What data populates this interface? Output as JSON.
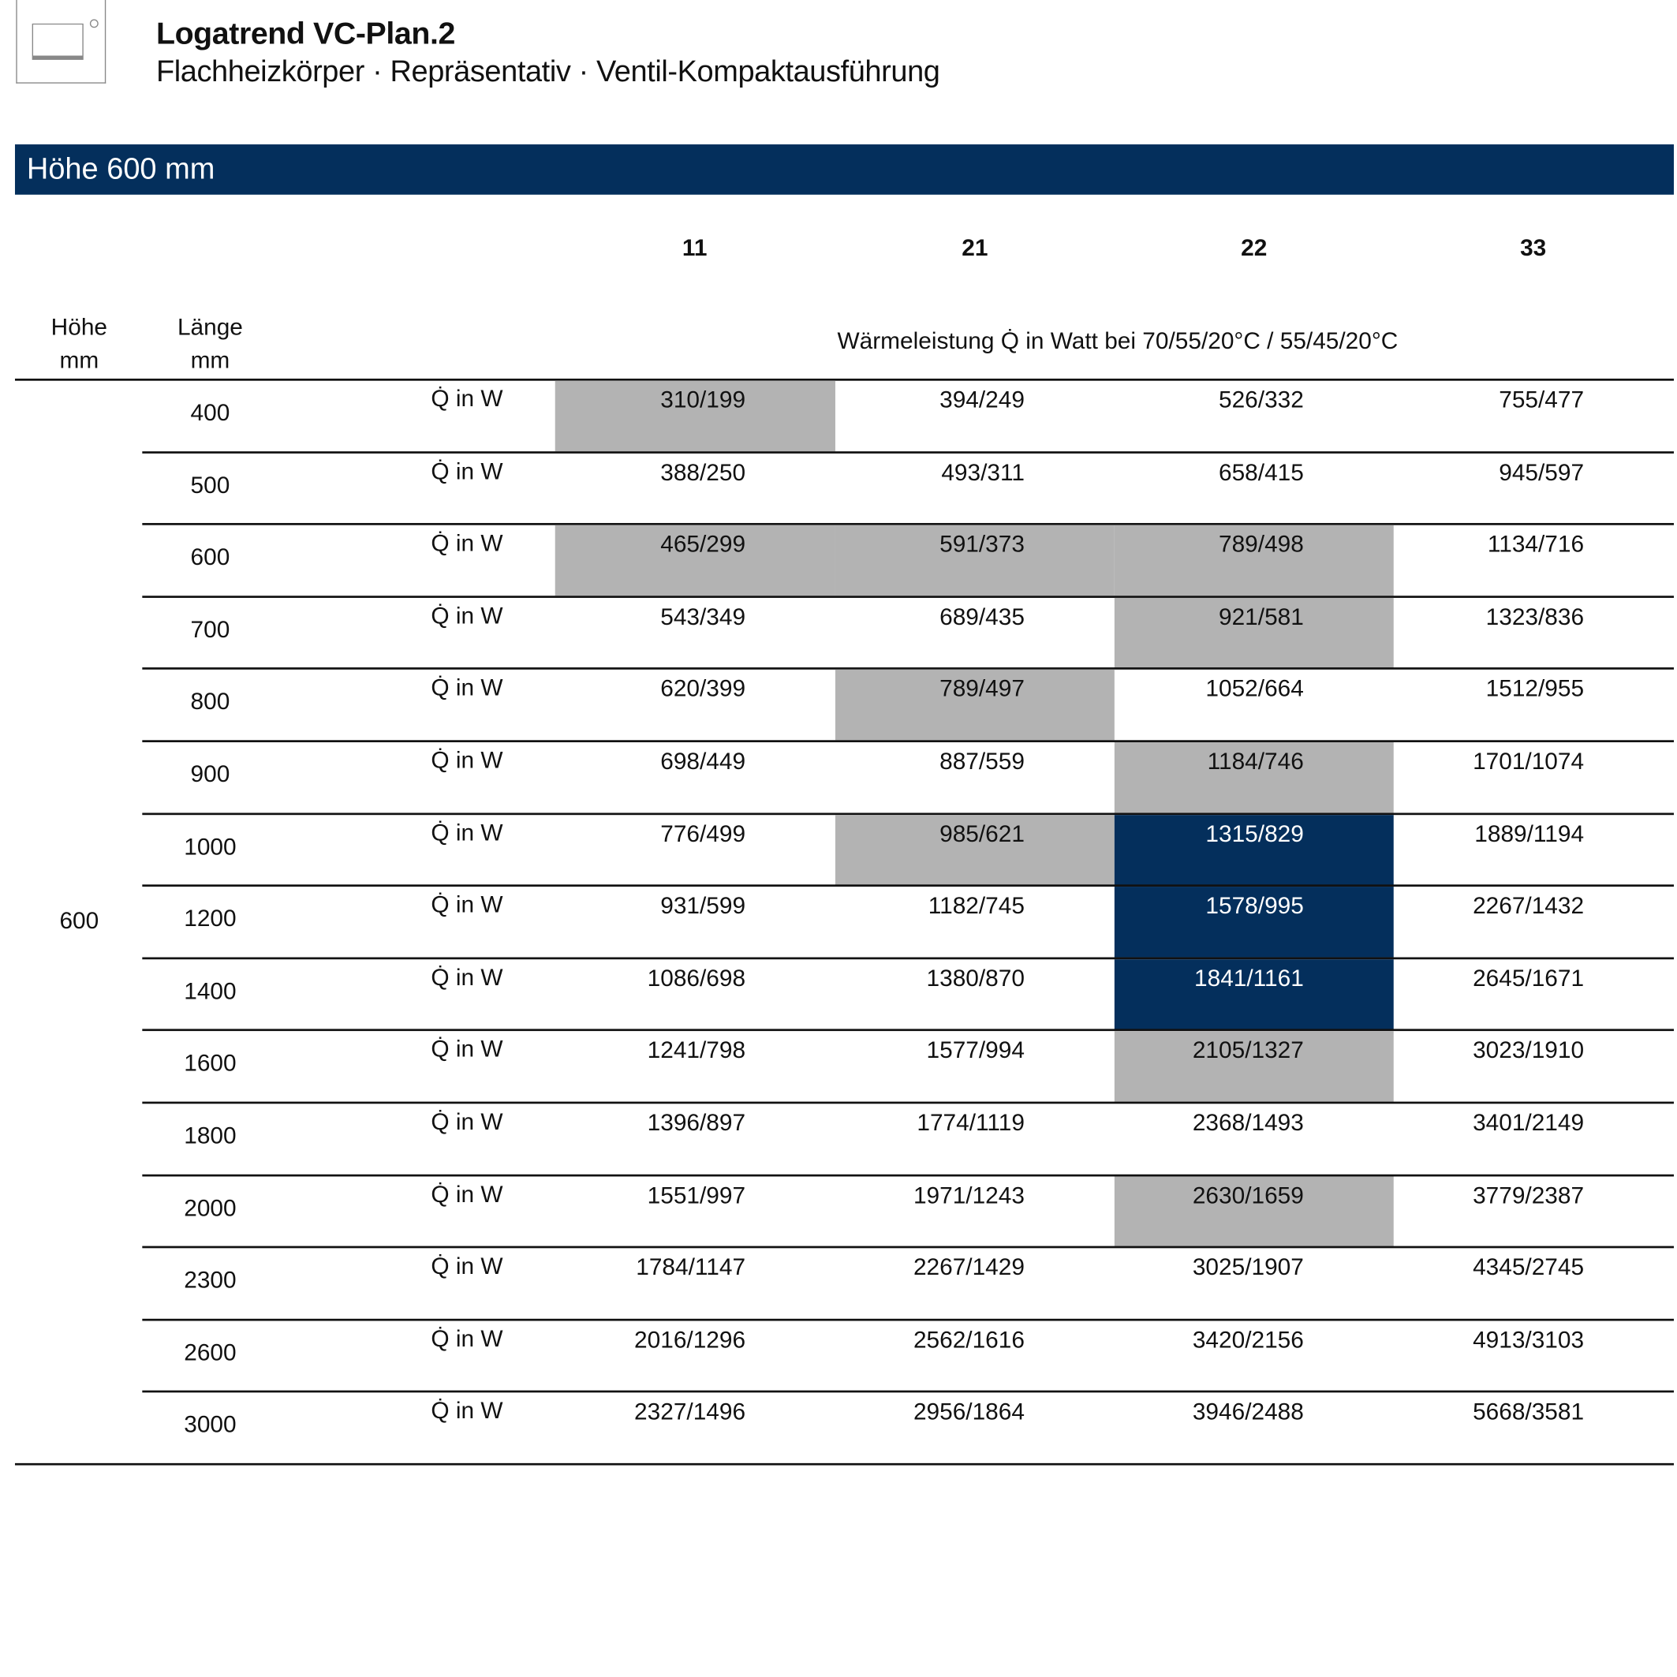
{
  "header": {
    "title": "Logatrend VC-Plan.2",
    "subtitle": "Flachheizkörper · Repräsentativ · Ventil-Kompaktausführung",
    "logo_icon": "radiator-icon"
  },
  "section": {
    "title": "Höhe 600 mm",
    "color": "#042f5c"
  },
  "table": {
    "types": [
      "11",
      "21",
      "22",
      "33"
    ],
    "col_height_label": "Höhe",
    "col_height_unit": "mm",
    "col_length_label": "Länge",
    "col_length_unit": "mm",
    "unit_header": "Wärmeleistung Q̇ in Watt bei 70/55/20°C / 55/45/20°C",
    "height_value": "600",
    "row_label": "Q̇ in W",
    "highlight_colors": {
      "gray": "#b3b3b3",
      "navy": "#042f5c"
    },
    "rows": [
      {
        "length": "400",
        "values": [
          "310/199",
          "394/249",
          "526/332",
          "755/477"
        ],
        "highlight": [
          "gray",
          null,
          null,
          null
        ]
      },
      {
        "length": "500",
        "values": [
          "388/250",
          "493/311",
          "658/415",
          "945/597"
        ],
        "highlight": [
          null,
          null,
          null,
          null
        ]
      },
      {
        "length": "600",
        "values": [
          "465/299",
          "591/373",
          "789/498",
          "1134/716"
        ],
        "highlight": [
          "gray",
          "gray",
          "gray",
          null
        ]
      },
      {
        "length": "700",
        "values": [
          "543/349",
          "689/435",
          "921/581",
          "1323/836"
        ],
        "highlight": [
          null,
          null,
          "gray",
          null
        ]
      },
      {
        "length": "800",
        "values": [
          "620/399",
          "789/497",
          "1052/664",
          "1512/955"
        ],
        "highlight": [
          null,
          "gray",
          null,
          null
        ]
      },
      {
        "length": "900",
        "values": [
          "698/449",
          "887/559",
          "1184/746",
          "1701/1074"
        ],
        "highlight": [
          null,
          null,
          "gray",
          null
        ]
      },
      {
        "length": "1000",
        "values": [
          "776/499",
          "985/621",
          "1315/829",
          "1889/1194"
        ],
        "highlight": [
          null,
          "gray",
          "navy",
          null
        ]
      },
      {
        "length": "1200",
        "values": [
          "931/599",
          "1182/745",
          "1578/995",
          "2267/1432"
        ],
        "highlight": [
          null,
          null,
          "navy",
          null
        ]
      },
      {
        "length": "1400",
        "values": [
          "1086/698",
          "1380/870",
          "1841/1161",
          "2645/1671"
        ],
        "highlight": [
          null,
          null,
          "navy",
          null
        ]
      },
      {
        "length": "1600",
        "values": [
          "1241/798",
          "1577/994",
          "2105/1327",
          "3023/1910"
        ],
        "highlight": [
          null,
          null,
          "gray",
          null
        ]
      },
      {
        "length": "1800",
        "values": [
          "1396/897",
          "1774/1119",
          "2368/1493",
          "3401/2149"
        ],
        "highlight": [
          null,
          null,
          null,
          null
        ]
      },
      {
        "length": "2000",
        "values": [
          "1551/997",
          "1971/1243",
          "2630/1659",
          "3779/2387"
        ],
        "highlight": [
          null,
          null,
          "gray",
          null
        ]
      },
      {
        "length": "2300",
        "values": [
          "1784/1147",
          "2267/1429",
          "3025/1907",
          "4345/2745"
        ],
        "highlight": [
          null,
          null,
          null,
          null
        ]
      },
      {
        "length": "2600",
        "values": [
          "2016/1296",
          "2562/1616",
          "3420/2156",
          "4913/3103"
        ],
        "highlight": [
          null,
          null,
          null,
          null
        ]
      },
      {
        "length": "3000",
        "values": [
          "2327/1496",
          "2956/1864",
          "3946/2488",
          "5668/3581"
        ],
        "highlight": [
          null,
          null,
          null,
          null
        ]
      }
    ]
  }
}
